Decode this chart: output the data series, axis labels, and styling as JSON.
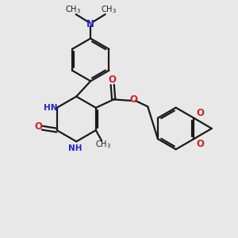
{
  "background_color": "#e8e8e8",
  "bond_color": "#1a1a1a",
  "nitrogen_color": "#2222cc",
  "oxygen_color": "#cc2222",
  "figsize": [
    3.0,
    3.0
  ],
  "dpi": 100,
  "xlim": [
    0,
    10
  ],
  "ylim": [
    0,
    10
  ]
}
